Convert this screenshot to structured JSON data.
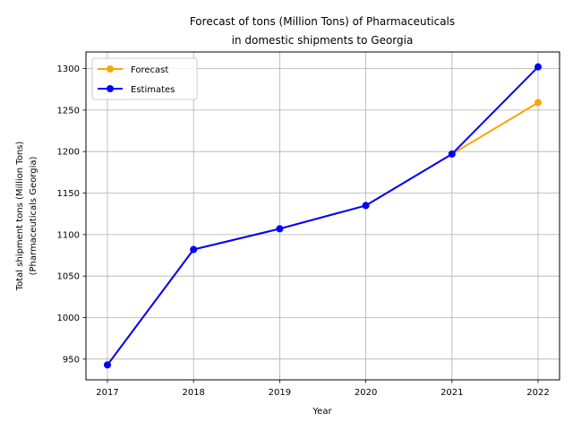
{
  "chart_data": {
    "type": "line",
    "title": [
      "Forecast of tons (Million Tons) of Pharmaceuticals",
      "in domestic shipments to Georgia"
    ],
    "xlabel": "Year",
    "ylabel": [
      "Total shipment tons (Million Tons)",
      "(Pharmaceuticals Georgia)"
    ],
    "x": [
      "2017",
      "2018",
      "2019",
      "2020",
      "2021",
      "2022"
    ],
    "ylim": [
      925,
      1320
    ],
    "yticks": [
      950,
      1000,
      1050,
      1100,
      1150,
      1200,
      1250,
      1300
    ],
    "grid": true,
    "legend_position": "upper-left",
    "series": [
      {
        "name": "Forecast",
        "color": "#ffa500",
        "values": [
          943,
          1082,
          1107,
          1135,
          1197,
          1259
        ]
      },
      {
        "name": "Estimates",
        "color": "#0000ff",
        "values": [
          943,
          1082,
          1107,
          1135,
          1197,
          1302
        ]
      }
    ]
  }
}
